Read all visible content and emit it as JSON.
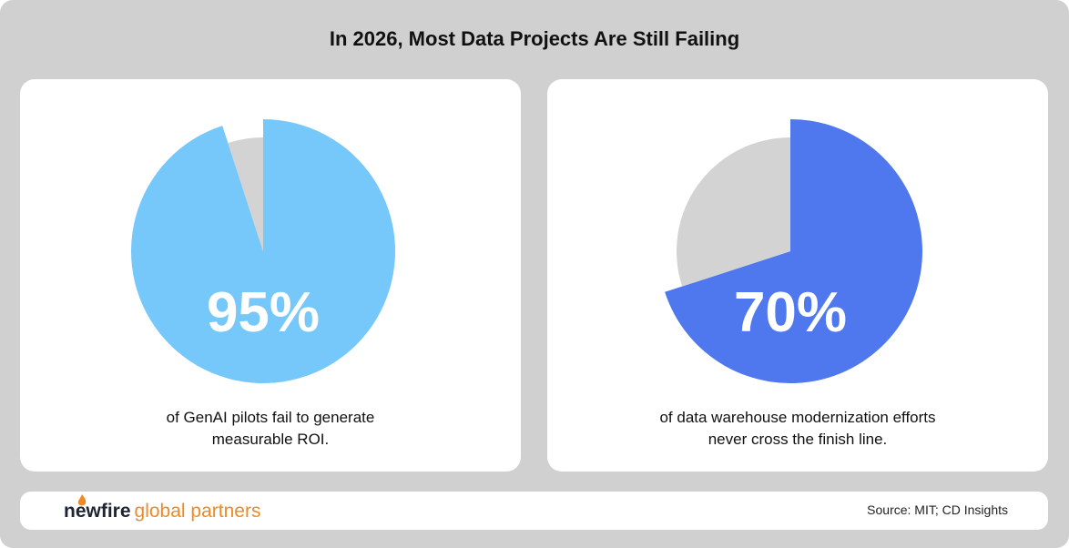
{
  "title": "In 2026, Most Data Projects Are Still Failing",
  "chart_data": [
    {
      "type": "pie",
      "values": [
        95,
        5
      ],
      "value_labels": [
        "95%",
        null
      ],
      "colors": [
        "#76c7fa",
        "#d3d3d3"
      ],
      "caption": "of GenAI pilots fail to generate measurable ROI."
    },
    {
      "type": "pie",
      "values": [
        70,
        30
      ],
      "value_labels": [
        "70%",
        null
      ],
      "colors": [
        "#5078ee",
        "#d3d3d3"
      ],
      "caption": "of data warehouse modernization efforts never cross the finish line."
    }
  ],
  "footer": {
    "brand": "newfire",
    "brand_suffix": "global partners",
    "source": "Source: MIT; CD Insights"
  }
}
